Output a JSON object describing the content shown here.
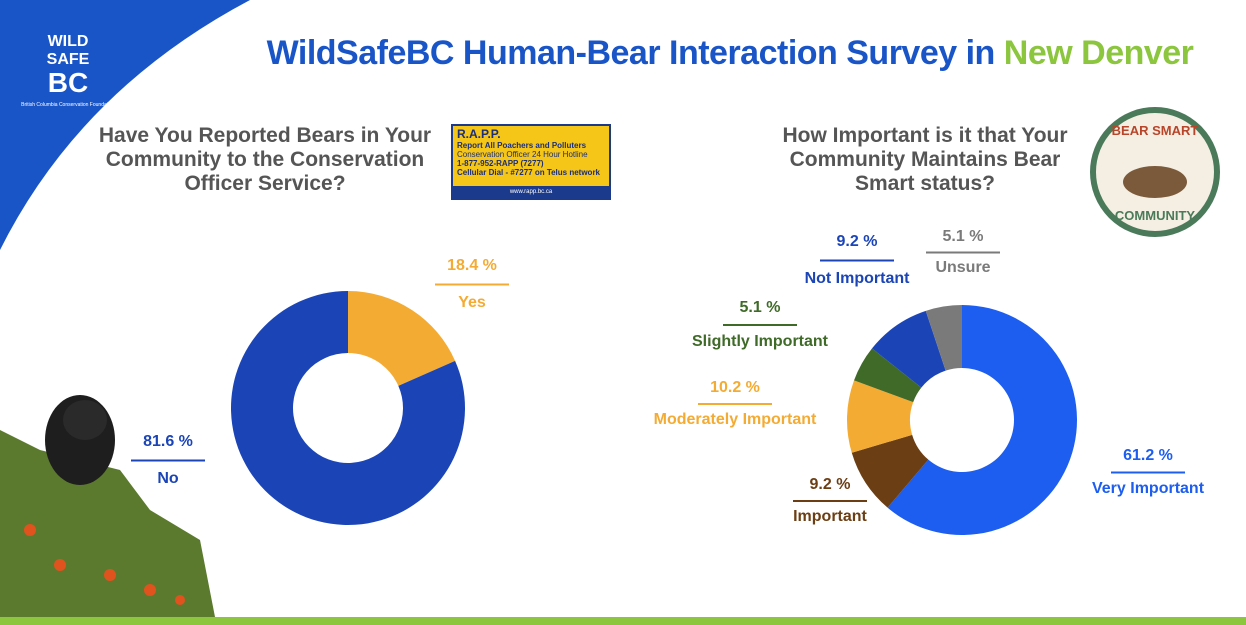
{
  "header": {
    "title_main": "WildSafeBC Human-Bear Interaction Survey in",
    "title_highlight": "New Denver"
  },
  "logo": {
    "line1": "WILD",
    "line2": "SAFE",
    "line3": "BC",
    "caption": "British Columbia Conservation Foundation"
  },
  "rapp_sign": {
    "title": "R.A.P.P.",
    "line1": "Report All Poachers and Polluters",
    "line2": "Conservation Officer 24 Hour Hotline",
    "line3": "1-877-952-RAPP (7277)",
    "line4": "Cellular Dial - #7277 on Telus network",
    "url": "www.rapp.bc.ca"
  },
  "badge": {
    "top": "BEAR SMART",
    "bottom": "COMMUNITY"
  },
  "chart_data": [
    {
      "type": "donut",
      "title": "Have You Reported Bears in Your Community to the Conservation Officer Service?",
      "categories": [
        "Yes",
        "No"
      ],
      "values": [
        18.4,
        81.6
      ],
      "value_labels": [
        "18.4 %",
        "81.6 %"
      ],
      "colors": [
        "#f4ab33",
        "#1b45b7"
      ]
    },
    {
      "type": "donut",
      "title": "How Important is it that Your Community Maintains Bear Smart status?",
      "categories": [
        "Very Important",
        "Important",
        "Moderately Important",
        "Slightly Important",
        "Not Important",
        "Unsure"
      ],
      "values": [
        61.2,
        9.2,
        10.2,
        5.1,
        9.2,
        5.1
      ],
      "value_labels": [
        "61.2 %",
        "9.2 %",
        "10.2 %",
        "5.1 %",
        "9.2 %",
        "5.1 %"
      ],
      "colors": [
        "#1d5ef0",
        "#6b3e14",
        "#f4ab33",
        "#3f6a28",
        "#1b45b7",
        "#7a7a7a"
      ]
    }
  ]
}
